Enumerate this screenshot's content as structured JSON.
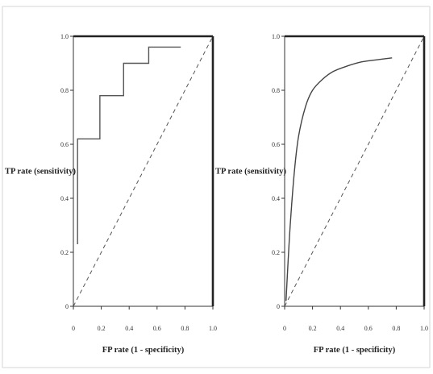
{
  "chart_data": [
    {
      "type": "line",
      "title": "",
      "xlabel": "FP rate (1 - specificity)",
      "ylabel": "TP rate (sensitivity)",
      "xlim": [
        0,
        1
      ],
      "ylim": [
        0,
        1
      ],
      "x_ticks": [
        "0",
        "0.2",
        "0.4",
        "0.6",
        "0.8",
        "1.0"
      ],
      "y_ticks": [
        "0",
        "0.2",
        "0.4",
        "0.6",
        "0.8",
        "1.0"
      ],
      "grid": false,
      "series": [
        {
          "style": "step",
          "color": "#555555",
          "points": [
            [
              0.03,
              0.23
            ],
            [
              0.03,
              0.62
            ],
            [
              0.19,
              0.62
            ],
            [
              0.19,
              0.78
            ],
            [
              0.36,
              0.78
            ],
            [
              0.36,
              0.9
            ],
            [
              0.54,
              0.9
            ],
            [
              0.54,
              0.96
            ],
            [
              0.77,
              0.96
            ]
          ]
        },
        {
          "style": "dashed",
          "color": "#555555",
          "points": [
            [
              0,
              0
            ],
            [
              1,
              1
            ]
          ]
        }
      ]
    },
    {
      "type": "line",
      "title": "",
      "xlabel": "FP rate (1 - specificity)",
      "ylabel": "TP rate (sensitivity)",
      "xlim": [
        0,
        1
      ],
      "ylim": [
        0,
        1
      ],
      "x_ticks": [
        "0",
        "0.2",
        "0.4",
        "0.6",
        "0.8",
        "1.0"
      ],
      "y_ticks": [
        "0",
        "0.2",
        "0.4",
        "0.6",
        "0.8",
        "1.0"
      ],
      "grid": false,
      "series": [
        {
          "style": "smooth",
          "color": "#444444",
          "points": [
            [
              0.01,
              0.02
            ],
            [
              0.02,
              0.12
            ],
            [
              0.04,
              0.3
            ],
            [
              0.07,
              0.5
            ],
            [
              0.1,
              0.63
            ],
            [
              0.15,
              0.74
            ],
            [
              0.2,
              0.8
            ],
            [
              0.27,
              0.84
            ],
            [
              0.35,
              0.87
            ],
            [
              0.45,
              0.89
            ],
            [
              0.55,
              0.905
            ],
            [
              0.65,
              0.912
            ],
            [
              0.77,
              0.92
            ]
          ]
        },
        {
          "style": "dashed",
          "color": "#555555",
          "points": [
            [
              0,
              0
            ],
            [
              1,
              1
            ]
          ]
        }
      ]
    }
  ]
}
